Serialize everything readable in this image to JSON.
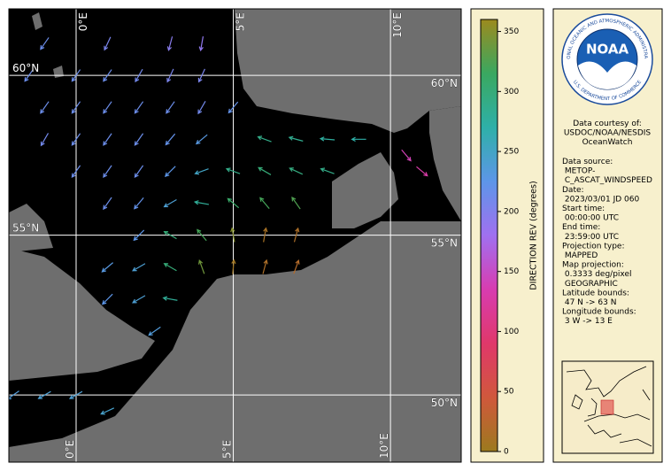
{
  "map": {
    "lon_range": [
      -2.14,
      12.25
    ],
    "lat_range": [
      47.9,
      62.08
    ],
    "lat_lines": [
      {
        "value": 60,
        "label": "60°N",
        "show_left": true
      },
      {
        "value": 55,
        "label": "55°N",
        "show_left": true
      },
      {
        "value": 50,
        "label": "50°N",
        "show_left": false
      }
    ],
    "lon_lines": [
      {
        "value": 0,
        "label": "0°E"
      },
      {
        "value": 5,
        "label": "5°E"
      },
      {
        "value": 10,
        "label": "10°E"
      }
    ],
    "vectors": [
      {
        "lon": -1,
        "lat": 61,
        "dir": 215
      },
      {
        "lon": 1,
        "lat": 61,
        "dir": 205
      },
      {
        "lon": 3,
        "lat": 61,
        "dir": 195
      },
      {
        "lon": 4,
        "lat": 61,
        "dir": 190
      },
      {
        "lon": -1.5,
        "lat": 60,
        "dir": 215
      },
      {
        "lon": 0,
        "lat": 60,
        "dir": 215
      },
      {
        "lon": 1,
        "lat": 60,
        "dir": 215
      },
      {
        "lon": 2,
        "lat": 60,
        "dir": 210
      },
      {
        "lon": 3,
        "lat": 60,
        "dir": 205
      },
      {
        "lon": 4,
        "lat": 60,
        "dir": 205
      },
      {
        "lon": -1,
        "lat": 59,
        "dir": 215
      },
      {
        "lon": 0,
        "lat": 59,
        "dir": 215
      },
      {
        "lon": 1,
        "lat": 59,
        "dir": 215
      },
      {
        "lon": 2,
        "lat": 59,
        "dir": 215
      },
      {
        "lon": 3,
        "lat": 59,
        "dir": 215
      },
      {
        "lon": 4,
        "lat": 59,
        "dir": 210
      },
      {
        "lon": 5,
        "lat": 59,
        "dir": 220
      },
      {
        "lon": -1,
        "lat": 58,
        "dir": 210
      },
      {
        "lon": 0,
        "lat": 58,
        "dir": 215
      },
      {
        "lon": 1,
        "lat": 58,
        "dir": 215
      },
      {
        "lon": 2,
        "lat": 58,
        "dir": 215
      },
      {
        "lon": 3,
        "lat": 58,
        "dir": 220
      },
      {
        "lon": 4,
        "lat": 58,
        "dir": 230
      },
      {
        "lon": 6,
        "lat": 58,
        "dir": 290
      },
      {
        "lon": 7,
        "lat": 58,
        "dir": 285
      },
      {
        "lon": 8,
        "lat": 58,
        "dir": 275
      },
      {
        "lon": 9,
        "lat": 58,
        "dir": 270
      },
      {
        "lon": 0,
        "lat": 57,
        "dir": 215
      },
      {
        "lon": 1,
        "lat": 57,
        "dir": 215
      },
      {
        "lon": 2,
        "lat": 57,
        "dir": 215
      },
      {
        "lon": 3,
        "lat": 57,
        "dir": 225
      },
      {
        "lon": 4,
        "lat": 57,
        "dir": 250
      },
      {
        "lon": 5,
        "lat": 57,
        "dir": 290
      },
      {
        "lon": 6,
        "lat": 57,
        "dir": 300
      },
      {
        "lon": 7,
        "lat": 57,
        "dir": 295
      },
      {
        "lon": 8,
        "lat": 57,
        "dir": 290
      },
      {
        "lon": 1,
        "lat": 56,
        "dir": 215
      },
      {
        "lon": 2,
        "lat": 56,
        "dir": 220
      },
      {
        "lon": 3,
        "lat": 56,
        "dir": 240
      },
      {
        "lon": 4,
        "lat": 56,
        "dir": 280
      },
      {
        "lon": 5,
        "lat": 56,
        "dir": 310
      },
      {
        "lon": 6,
        "lat": 56,
        "dir": 320
      },
      {
        "lon": 7,
        "lat": 56,
        "dir": 325
      },
      {
        "lon": 2,
        "lat": 55,
        "dir": 225
      },
      {
        "lon": 3,
        "lat": 55,
        "dir": 300
      },
      {
        "lon": 4,
        "lat": 55,
        "dir": 320
      },
      {
        "lon": 5,
        "lat": 55,
        "dir": 350
      },
      {
        "lon": 6,
        "lat": 55,
        "dir": 10
      },
      {
        "lon": 7,
        "lat": 55,
        "dir": 15
      },
      {
        "lon": 1,
        "lat": 54,
        "dir": 230
      },
      {
        "lon": 2,
        "lat": 54,
        "dir": 240
      },
      {
        "lon": 3,
        "lat": 54,
        "dir": 300
      },
      {
        "lon": 4,
        "lat": 54,
        "dir": 340
      },
      {
        "lon": 5,
        "lat": 54,
        "dir": 5
      },
      {
        "lon": 6,
        "lat": 54,
        "dir": 15
      },
      {
        "lon": 7,
        "lat": 54,
        "dir": 20
      },
      {
        "lon": 1,
        "lat": 53,
        "dir": 225
      },
      {
        "lon": 2,
        "lat": 53,
        "dir": 240
      },
      {
        "lon": 3,
        "lat": 53,
        "dir": 280
      },
      {
        "lon": 2.5,
        "lat": 52,
        "dir": 235
      },
      {
        "lon": -2,
        "lat": 50,
        "dir": 235
      },
      {
        "lon": -1,
        "lat": 50,
        "dir": 240
      },
      {
        "lon": 0,
        "lat": 50,
        "dir": 240
      },
      {
        "lon": 1,
        "lat": 49.5,
        "dir": 245
      },
      {
        "lon": 11,
        "lat": 57,
        "dir": 130
      },
      {
        "lon": 10.5,
        "lat": 57.5,
        "dir": 140
      }
    ]
  },
  "colorbar": {
    "label": "DIRECTION REV (degrees)",
    "lim": [
      0,
      360
    ],
    "ticks": [
      0,
      50,
      100,
      150,
      200,
      250,
      300,
      350
    ],
    "colors": [
      "#9c7a1e",
      "#d0583c",
      "#e0386a",
      "#d83cb0",
      "#a070f0",
      "#5d96e8",
      "#2eb0a8",
      "#3aa860",
      "#9c8a1e"
    ]
  },
  "logo": {
    "name": "NOAA",
    "ring_top": "NATIONAL OCEANIC AND ATMOSPHERIC ADMINISTRATION",
    "ring_bottom": "U.S. DEPARTMENT OF COMMERCE"
  },
  "info": {
    "credit": [
      "Data courtesy of:",
      "USDOC/NOAA/NESDIS",
      "OceanWatch"
    ],
    "lines": [
      "Data source:",
      " METOP-",
      " C_ASCAT_WINDSPEED",
      "Date:",
      " 2023/03/01 JD 060",
      "Start time:",
      " 00:00:00 UTC",
      "End time:",
      " 23:59:00 UTC",
      "Projection type:",
      " MAPPED",
      "Map projection:",
      " 0.3333 deg/pixel",
      " GEOGRAPHIC",
      "Latitude bounds:",
      " 47 N -> 63 N",
      "Longitude bounds:",
      " 3 W -> 13 E"
    ]
  }
}
